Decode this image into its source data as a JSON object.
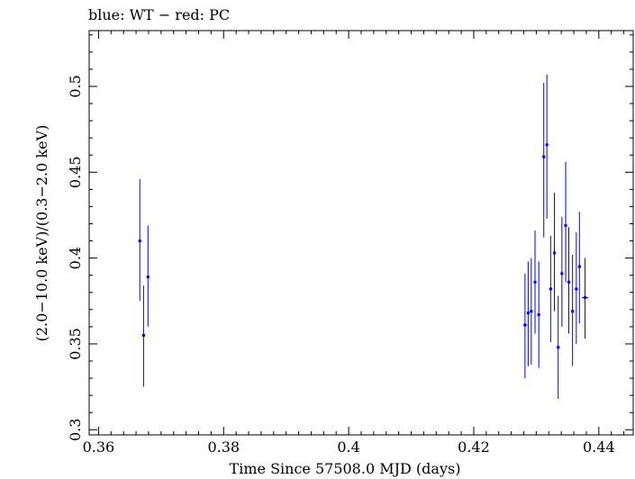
{
  "chart_data": {
    "type": "scatter",
    "title": "blue: WT − red: PC",
    "xlabel": "Time Since 57508.0 MJD (days)",
    "ylabel": "(2.0−10.0 keV)/(0.3−2.0 keV)",
    "xlim": [
      0.3585,
      0.4455
    ],
    "ylim": [
      0.297,
      0.5325
    ],
    "x_major_ticks": [
      0.36,
      0.38,
      0.4,
      0.42,
      0.44
    ],
    "x_tick_labels": [
      "0.36",
      "0.38",
      "0.4",
      "0.42",
      "0.44"
    ],
    "y_major_ticks": [
      0.3,
      0.35,
      0.4,
      0.45,
      0.5
    ],
    "y_tick_labels": [
      "0.3",
      "0.35",
      "0.4",
      "0.45",
      "0.5"
    ],
    "x_minor_step": 0.002,
    "y_minor_step": 0.01,
    "series": [
      {
        "name": "WT",
        "color": "#0000ff",
        "points": [
          {
            "x": 0.3666,
            "y": 0.41,
            "xerr": 0.0002,
            "ylo": 0.375,
            "yhi": 0.446
          },
          {
            "x": 0.3672,
            "y": 0.355,
            "xerr": 0.0002,
            "ylo": 0.325,
            "yhi": 0.384
          },
          {
            "x": 0.3679,
            "y": 0.389,
            "xerr": 0.0002,
            "ylo": 0.36,
            "yhi": 0.419
          },
          {
            "x": 0.4282,
            "y": 0.361,
            "xerr": 0.0003,
            "ylo": 0.33,
            "yhi": 0.391
          },
          {
            "x": 0.4287,
            "y": 0.368,
            "xerr": 0.0002,
            "ylo": 0.337,
            "yhi": 0.398
          },
          {
            "x": 0.4292,
            "y": 0.369,
            "xerr": 0.0002,
            "ylo": 0.338,
            "yhi": 0.4
          },
          {
            "x": 0.4298,
            "y": 0.386,
            "xerr": 0.0002,
            "ylo": 0.356,
            "yhi": 0.416
          },
          {
            "x": 0.4304,
            "y": 0.367,
            "xerr": 0.0002,
            "ylo": 0.336,
            "yhi": 0.398
          },
          {
            "x": 0.4312,
            "y": 0.459,
            "xerr": 0.0002,
            "ylo": 0.412,
            "yhi": 0.502
          },
          {
            "x": 0.4317,
            "y": 0.466,
            "xerr": 0.0002,
            "ylo": 0.423,
            "yhi": 0.507
          },
          {
            "x": 0.4323,
            "y": 0.382,
            "xerr": 0.0002,
            "ylo": 0.351,
            "yhi": 0.413
          },
          {
            "x": 0.4329,
            "y": 0.403,
            "xerr": 0.0002,
            "ylo": 0.369,
            "yhi": 0.438
          },
          {
            "x": 0.4335,
            "y": 0.348,
            "xerr": 0.0002,
            "ylo": 0.318,
            "yhi": 0.378
          },
          {
            "x": 0.4341,
            "y": 0.391,
            "xerr": 0.0002,
            "ylo": 0.36,
            "yhi": 0.424
          },
          {
            "x": 0.4347,
            "y": 0.419,
            "xerr": 0.0002,
            "ylo": 0.386,
            "yhi": 0.456
          },
          {
            "x": 0.4352,
            "y": 0.386,
            "xerr": 0.0002,
            "ylo": 0.356,
            "yhi": 0.418
          },
          {
            "x": 0.4358,
            "y": 0.369,
            "xerr": 0.0002,
            "ylo": 0.337,
            "yhi": 0.402
          },
          {
            "x": 0.4364,
            "y": 0.382,
            "xerr": 0.0002,
            "ylo": 0.35,
            "yhi": 0.415
          },
          {
            "x": 0.4369,
            "y": 0.395,
            "xerr": 0.0002,
            "ylo": 0.362,
            "yhi": 0.427
          },
          {
            "x": 0.4378,
            "y": 0.377,
            "xerr": 0.0005,
            "ylo": 0.353,
            "yhi": 0.4
          }
        ]
      }
    ]
  }
}
